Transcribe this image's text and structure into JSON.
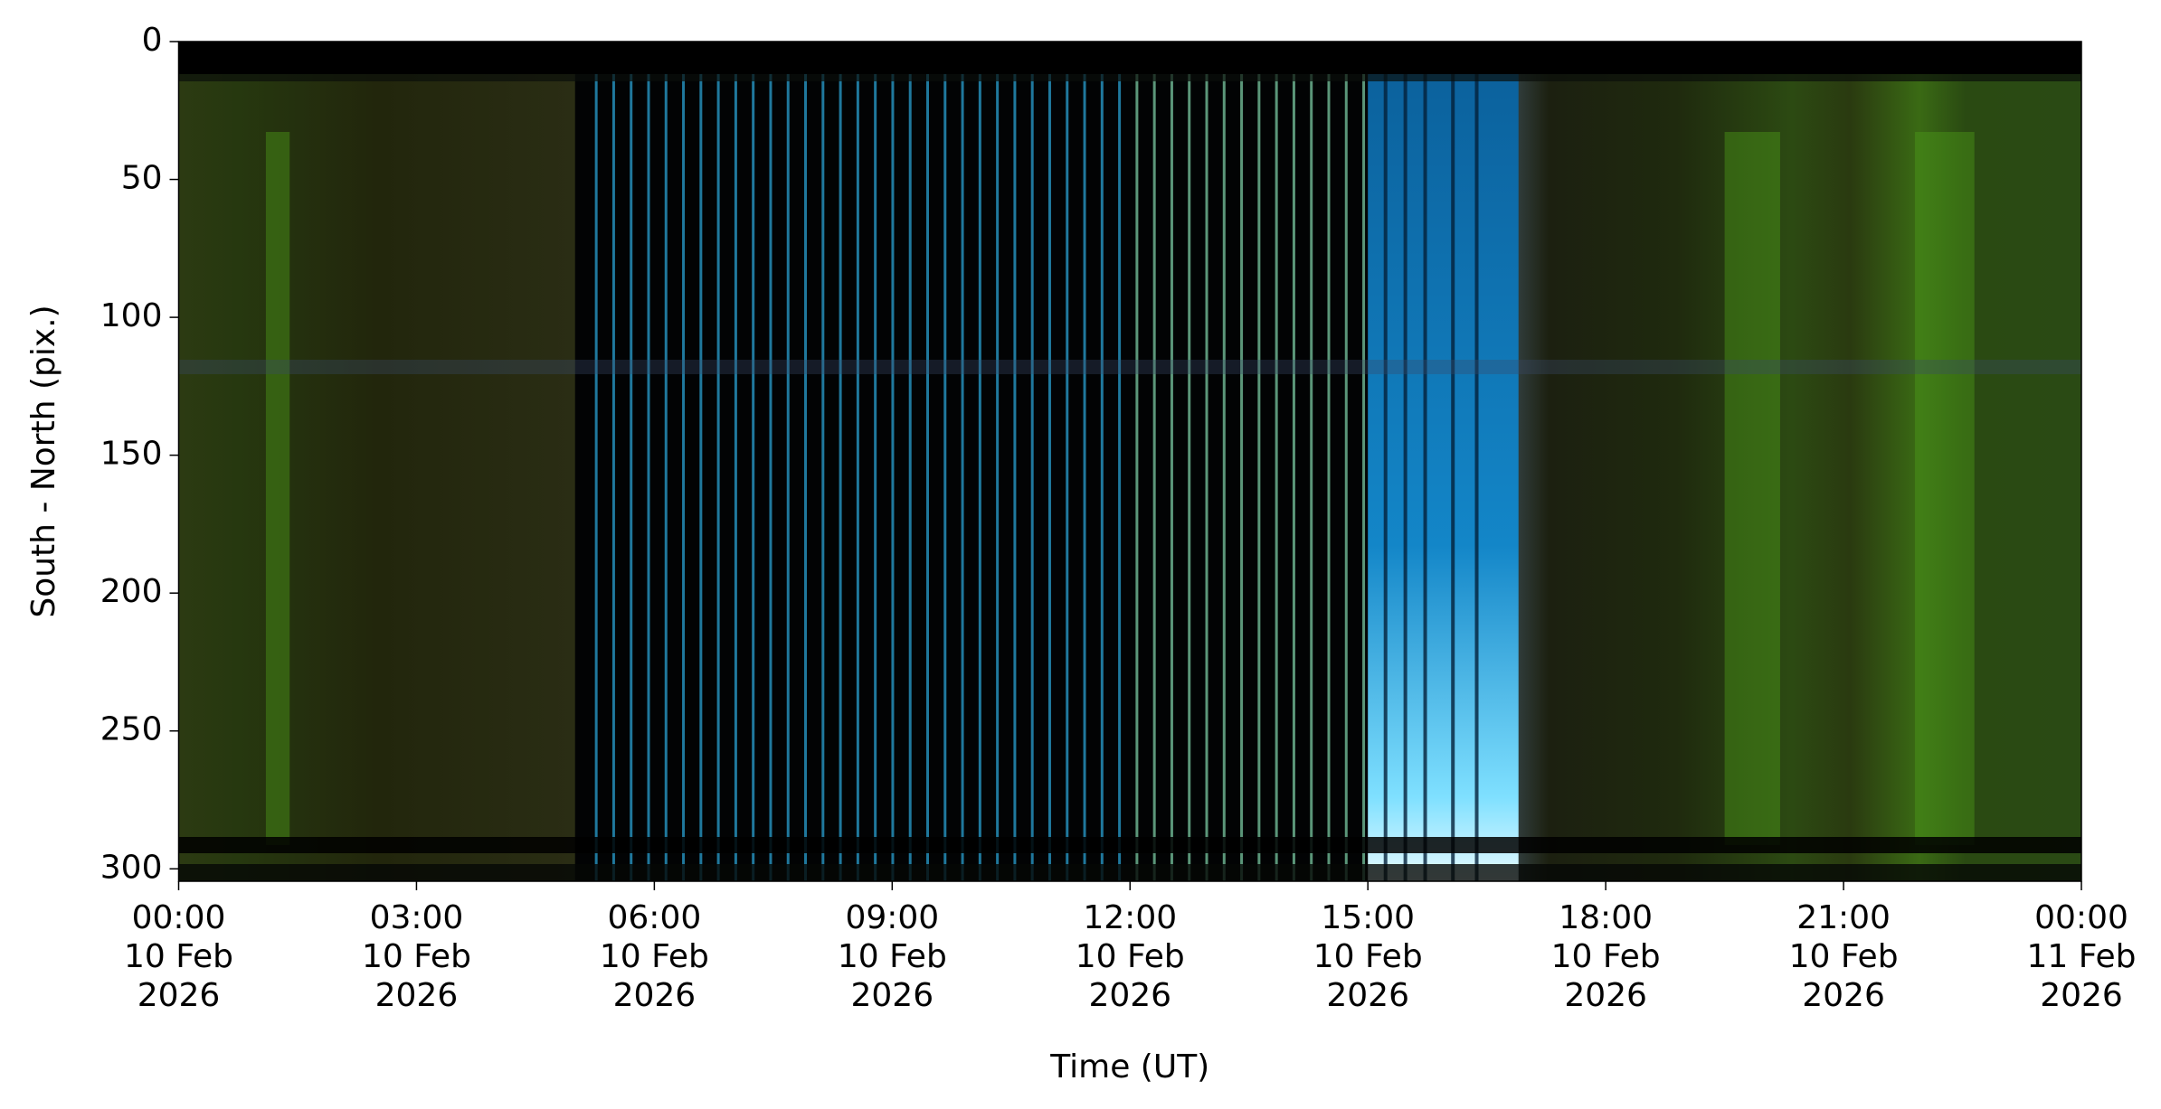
{
  "chart_data": {
    "type": "keogram",
    "xlabel": "Time (UT)",
    "ylabel": "South - North (pix.)",
    "xlim": [
      "2026-02-10T00:00",
      "2026-02-11T00:00"
    ],
    "xticks": [
      {
        "value": "2026-02-10T00:00",
        "label": [
          "00:00",
          "10 Feb",
          "2026"
        ]
      },
      {
        "value": "2026-02-10T03:00",
        "label": [
          "03:00",
          "10 Feb",
          "2026"
        ]
      },
      {
        "value": "2026-02-10T06:00",
        "label": [
          "06:00",
          "10 Feb",
          "2026"
        ]
      },
      {
        "value": "2026-02-10T09:00",
        "label": [
          "09:00",
          "10 Feb",
          "2026"
        ]
      },
      {
        "value": "2026-02-10T12:00",
        "label": [
          "12:00",
          "10 Feb",
          "2026"
        ]
      },
      {
        "value": "2026-02-10T15:00",
        "label": [
          "15:00",
          "10 Feb",
          "2026"
        ]
      },
      {
        "value": "2026-02-10T18:00",
        "label": [
          "18:00",
          "10 Feb",
          "2026"
        ]
      },
      {
        "value": "2026-02-10T21:00",
        "label": [
          "21:00",
          "10 Feb",
          "2026"
        ]
      },
      {
        "value": "2026-02-11T00:00",
        "label": [
          "00:00",
          "11 Feb",
          "2026"
        ]
      }
    ],
    "ylim": [
      304.5,
      0
    ],
    "yticks": [
      0,
      50,
      100,
      150,
      200,
      250,
      300
    ]
  }
}
